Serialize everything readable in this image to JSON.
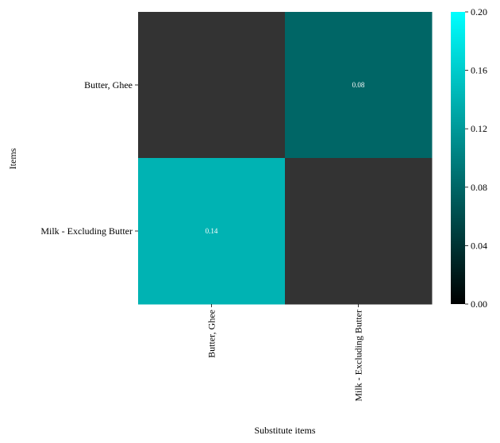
{
  "chart_data": {
    "type": "heatmap",
    "title": "",
    "xlabel": "Substitute items",
    "ylabel": "Items",
    "x_categories": [
      "Butter, Ghee",
      "Milk - Excluding Butter"
    ],
    "y_categories": [
      "Butter, Ghee",
      "Milk - Excluding Butter"
    ],
    "values": [
      [
        null,
        0.08
      ],
      [
        0.14,
        null
      ]
    ],
    "cell_labels": [
      [
        "",
        "0.08"
      ],
      [
        "0.14",
        ""
      ]
    ],
    "missing_color": "#333333",
    "colorbar": {
      "range": [
        0,
        0.2
      ],
      "ticks": [
        "0.00",
        "0.04",
        "0.08",
        "0.12",
        "0.16",
        "0.20"
      ],
      "colors": [
        "#000000",
        "#00ffff"
      ]
    },
    "grid": false
  }
}
